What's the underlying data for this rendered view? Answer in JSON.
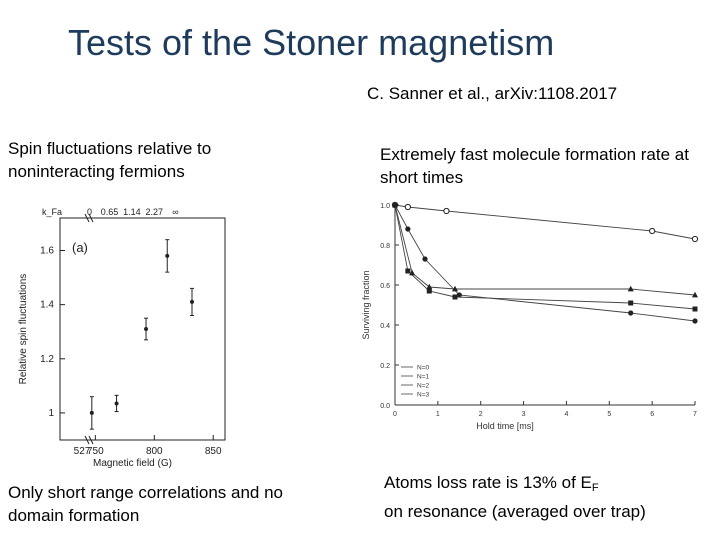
{
  "slide": {
    "title": "Tests of the Stoner magnetism",
    "citation": "C. Sanner et al., arXiv:1108.2017",
    "caption_top_left": "Spin fluctuations relative to noninteracting fermions",
    "caption_top_right": "Extremely fast molecule formation rate at short times",
    "caption_bottom_left": "Only short range correlations and no domain formation",
    "caption_bottom_right_a": "Atoms loss rate is 13% of E",
    "caption_bottom_right_sub": "F",
    "caption_bottom_right_b": "on resonance (averaged over trap)"
  },
  "chart_data": [
    {
      "type": "scatter",
      "panel_label": "(a)",
      "xlabel": "Magnetic field (G)",
      "ylabel": "Relative spin fluctuations",
      "xlim": [
        720,
        860
      ],
      "ylim": [
        0.9,
        1.72
      ],
      "x_ticks": [
        "750",
        "800",
        "850"
      ],
      "x_tick_values": [
        750,
        800,
        850
      ],
      "y_ticks": [
        "1",
        "1.2",
        "1.4",
        "1.6"
      ],
      "y_tick_values": [
        1.0,
        1.2,
        1.4,
        1.6
      ],
      "bottom_extra_tick": "527",
      "top_axis_label": "k_Fa",
      "top_ticks": [
        "0",
        "0.65",
        "1.14",
        "2.27",
        "∞"
      ],
      "top_tick_values": [
        745,
        762,
        781,
        800,
        818
      ],
      "points": [
        {
          "x": 747,
          "y": 1.0,
          "err": 0.06
        },
        {
          "x": 768,
          "y": 1.035,
          "err": 0.03
        },
        {
          "x": 793,
          "y": 1.31,
          "err": 0.04
        },
        {
          "x": 811,
          "y": 1.58,
          "err": 0.06
        },
        {
          "x": 832,
          "y": 1.41,
          "err": 0.05
        }
      ],
      "grid": false
    },
    {
      "type": "line",
      "xlabel": "Hold time [ms]",
      "ylabel": "Surviving fraction",
      "xlim": [
        0,
        7
      ],
      "ylim": [
        0,
        1.0
      ],
      "x_ticks": [
        "0",
        "1",
        "2",
        "3",
        "4",
        "5",
        "6",
        "7"
      ],
      "y_ticks": [
        "0.0",
        "0.2",
        "0.4",
        "0.6",
        "0.8",
        "1.0"
      ],
      "series": [
        {
          "name": "N=0",
          "marker": "circle-open",
          "x": [
            0,
            0.3,
            1.2,
            6.0,
            7.0
          ],
          "y": [
            1.0,
            0.99,
            0.97,
            0.87,
            0.83
          ]
        },
        {
          "name": "N=1",
          "marker": "circle-filled",
          "x": [
            0,
            0.3,
            0.7,
            1.5,
            5.5,
            7.0
          ],
          "y": [
            1.0,
            0.88,
            0.73,
            0.55,
            0.46,
            0.42
          ]
        },
        {
          "name": "N=2",
          "marker": "square-filled",
          "x": [
            0,
            0.3,
            0.8,
            1.4,
            5.5,
            7.0
          ],
          "y": [
            1.0,
            0.67,
            0.57,
            0.54,
            0.51,
            0.48
          ]
        },
        {
          "name": "N=3",
          "marker": "triangle-filled",
          "x": [
            0,
            0.4,
            0.8,
            1.4,
            5.5,
            7.0
          ],
          "y": [
            1.0,
            0.66,
            0.59,
            0.58,
            0.58,
            0.55
          ]
        }
      ],
      "grid": false
    }
  ]
}
